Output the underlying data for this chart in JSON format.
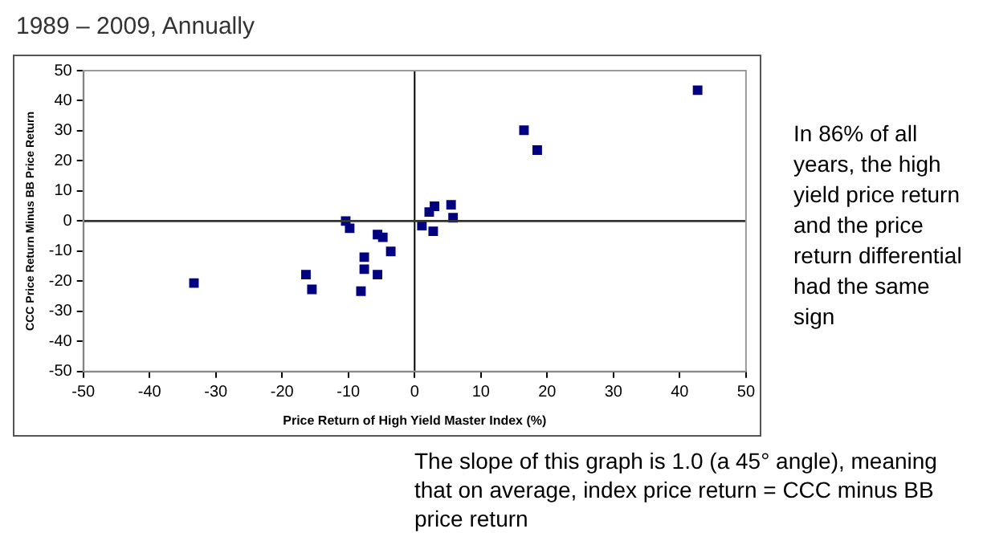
{
  "chart_data": {
    "type": "scatter",
    "title": "1989 – 2009, Annually",
    "xlabel": "Price Return of High Yield Master Index (%)",
    "ylabel": "CCC Price Return Minus BB Price Return",
    "annotations": [
      "In 86% of all years, the high yield price return and the price return differential had the same sign",
      "The slope of this graph is 1.0 (a 45° angle), meaning that on average, index price return = CCC minus BB price return"
    ],
    "x": [
      -33.3,
      -16.4,
      -15.5,
      -10.4,
      -9.8,
      -8.1,
      -7.6,
      -7.6,
      -5.6,
      -5.6,
      -4.8,
      -3.6,
      1.1,
      2.2,
      2.8,
      3.0,
      5.5,
      5.8,
      16.5,
      18.5,
      42.7
    ],
    "series": [
      {
        "color": "#000080",
        "values": [
          -20.6,
          -17.8,
          -22.7,
          0,
          -2.4,
          -23.3,
          -12,
          -16,
          -4.5,
          -17.8,
          -5.4,
          -10.1,
          -1.5,
          3.0,
          -3.4,
          4.9,
          5.4,
          1.1,
          30.2,
          23.6,
          43.5
        ]
      }
    ],
    "xlim": [
      -50,
      50
    ],
    "xticks": [
      -50,
      -40,
      -30,
      -20,
      -10,
      0,
      10,
      20,
      30,
      40,
      50
    ],
    "ylim": [
      -50,
      50
    ],
    "yticks": [
      -50,
      -40,
      -30,
      -20,
      -10,
      0,
      10,
      20,
      30,
      40,
      50
    ],
    "ref_lines": [
      {
        "axis": "x",
        "value": 0,
        "color": "#000000"
      },
      {
        "axis": "y",
        "value": 0,
        "color": "#333333"
      }
    ],
    "grid": false,
    "legend": false,
    "marker": "square"
  }
}
